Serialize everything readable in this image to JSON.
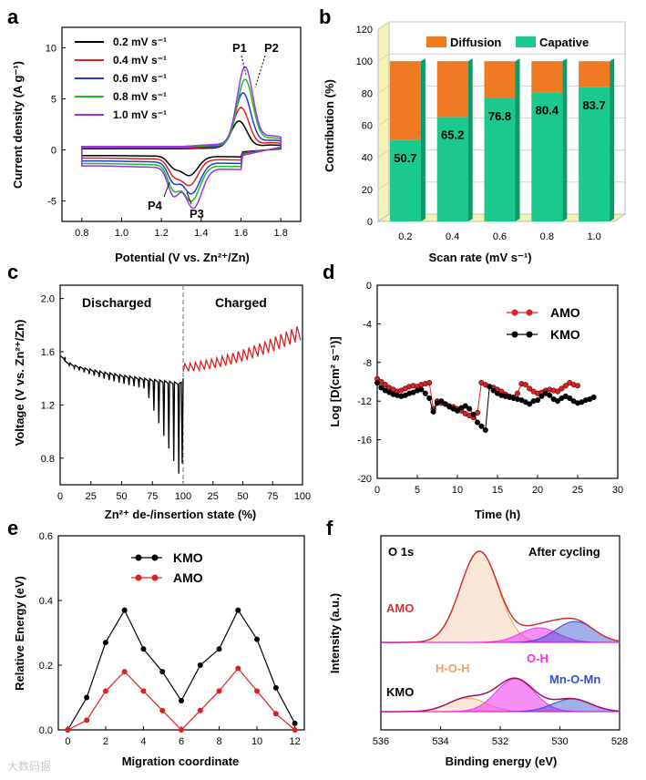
{
  "panel_letters": [
    "a",
    "b",
    "c",
    "d",
    "e",
    "f"
  ],
  "watermark": "大数码据",
  "chart_data": [
    {
      "panel": "a",
      "type": "line",
      "title": "",
      "xlabel": "Potential (V vs. Zn²⁺/Zn)",
      "ylabel": "Current density (A g⁻¹)",
      "xlim": [
        0.7,
        1.9
      ],
      "ylim": [
        -7,
        12
      ],
      "xticks": [
        "0.8",
        "1.0",
        "1.2",
        "1.4",
        "1.6",
        "1.8"
      ],
      "yticks": [
        "-5",
        "0",
        "5",
        "10"
      ],
      "legend": {
        "position": "top-left",
        "entries": [
          "0.2 mV s⁻¹",
          "0.4 mV s⁻¹",
          "0.6 mV s⁻¹",
          "0.8 mV s⁻¹",
          "1.0 mV s⁻¹"
        ]
      },
      "colors": [
        "#000000",
        "#e02020",
        "#1f3bd6",
        "#1fbf1f",
        "#9a32e6"
      ],
      "annotations": [
        "P1",
        "P2",
        "P3",
        "P4"
      ],
      "series": [
        {
          "name": "0.2 mV s⁻¹",
          "ox_peak": [
            1.59,
            2.9
          ],
          "red_peak": [
            1.34,
            -2.2
          ],
          "peak": 2.6
        },
        {
          "name": "0.4 mV s⁻¹",
          "ox_peak": [
            1.6,
            4.1
          ],
          "red_peak": [
            1.34,
            -3.0
          ],
          "peak": 3.8
        },
        {
          "name": "0.6 mV s⁻¹",
          "ox_peak": [
            1.61,
            5.4
          ],
          "red_peak": [
            1.35,
            -3.6
          ],
          "peak": 5.1
        },
        {
          "name": "0.8 mV s⁻¹",
          "ox_peak": [
            1.62,
            6.6
          ],
          "red_peak": [
            1.35,
            -4.1
          ],
          "peak": 6.3
        },
        {
          "name": "1.0 mV s⁻¹",
          "ox_peak": [
            1.62,
            7.7
          ],
          "red_peak": [
            1.36,
            -4.6
          ],
          "peak": 7.4
        }
      ]
    },
    {
      "panel": "b",
      "type": "bar",
      "xlabel": "Scan rate (mV s⁻¹)",
      "ylabel": "Contribution (%)",
      "ylim": [
        0,
        120
      ],
      "yticks": [
        "0",
        "20",
        "40",
        "60",
        "80",
        "100",
        "120"
      ],
      "categories": [
        "0.2",
        "0.4",
        "0.6",
        "0.8",
        "1.0"
      ],
      "legend": {
        "position": "top",
        "entries": [
          "Diffusion",
          "Capative"
        ]
      },
      "colors": {
        "diffusion": "#f07a22",
        "capative": "#1bc98c",
        "wall": "#f5f3b3"
      },
      "series": [
        {
          "name": "Capative",
          "values": [
            50.7,
            65.2,
            76.8,
            80.4,
            83.7
          ]
        },
        {
          "name": "Diffusion",
          "values": [
            49.3,
            34.8,
            23.2,
            19.6,
            16.3
          ]
        }
      ],
      "data_labels": [
        "50.7",
        "65.2",
        "76.8",
        "80.4",
        "83.7"
      ]
    },
    {
      "panel": "c",
      "type": "line",
      "xlabel": "Zn²⁺ de-/insertion state (%)",
      "ylabel": "Voltage (V vs. Zn²⁺/Zn)",
      "xlim": [
        0,
        100
      ],
      "ylim": [
        0.6,
        2.1
      ],
      "xticks": [
        "0",
        "25",
        "50",
        "75",
        "100",
        "25",
        "50",
        "75",
        "100"
      ],
      "yticks": [
        "0.8",
        "1.2",
        "1.6",
        "2.0"
      ],
      "annotations": [
        "Discharged",
        "Charged"
      ],
      "colors": [
        "#000000",
        "#e02020",
        "#888888"
      ],
      "series": [
        {
          "name": "Discharged",
          "start": 1.57,
          "end": 1.37,
          "min_spike": 0.76
        },
        {
          "name": "Charged",
          "start": 1.45,
          "end": 1.78
        }
      ]
    },
    {
      "panel": "d",
      "type": "scatter",
      "xlabel": "Time (h)",
      "ylabel": "Log [D(cm² s⁻¹)]",
      "xlim": [
        0,
        30
      ],
      "ylim": [
        -20,
        0
      ],
      "xticks": [
        "0",
        "5",
        "10",
        "15",
        "20",
        "25",
        "30"
      ],
      "yticks": [
        "0",
        "-4",
        "-8",
        "-12",
        "-16",
        "-20"
      ],
      "legend": {
        "position": "top-right",
        "entries": [
          "AMO",
          "KMO"
        ]
      },
      "colors": [
        "#e02020",
        "#000000"
      ],
      "series": [
        {
          "name": "AMO",
          "x": [
            0,
            0.5,
            1,
            1.5,
            2,
            2.5,
            3,
            3.5,
            4,
            4.5,
            5,
            5.5,
            6,
            6.5,
            7,
            7.5,
            8,
            8.5,
            9,
            9.5,
            10,
            10.5,
            11,
            11.5,
            12,
            12.5,
            13,
            13.5,
            14,
            14.5,
            15,
            15.5,
            16,
            16.5,
            17,
            17.5,
            18,
            18.5,
            19,
            19.5,
            20,
            20.5,
            21,
            21.5,
            22,
            22.5,
            23,
            23.5,
            24,
            24.5,
            25
          ],
          "y": [
            -9.7,
            -10.0,
            -10.3,
            -10.6,
            -10.8,
            -11.0,
            -10.9,
            -10.7,
            -10.5,
            -10.4,
            -10.5,
            -10.3,
            -10.2,
            -10.1,
            -12.8,
            -12.0,
            -12.2,
            -12.3,
            -12.5,
            -12.6,
            -12.8,
            -13.0,
            -13.3,
            -13.5,
            -13.7,
            -13.2,
            -10.1,
            -10.3,
            -10.5,
            -10.6,
            -10.8,
            -11.0,
            -11.3,
            -11.5,
            -11.6,
            -11.2,
            -10.2,
            -10.3,
            -10.7,
            -11.0,
            -11.2,
            -11.1,
            -10.9,
            -10.8,
            -10.9,
            -11.0,
            -10.7,
            -10.4,
            -10.1,
            -10.3,
            -10.4
          ]
        },
        {
          "name": "KMO",
          "x": [
            0,
            0.5,
            1,
            1.5,
            2,
            2.5,
            3,
            3.5,
            4,
            4.5,
            5,
            5.5,
            6,
            6.5,
            7,
            7.5,
            8,
            8.5,
            9,
            9.5,
            10,
            10.5,
            11,
            11.5,
            12,
            12.5,
            13,
            13.5,
            14,
            14.5,
            15,
            15.5,
            16,
            16.5,
            17,
            17.5,
            18,
            18.5,
            19,
            19.5,
            20,
            20.5,
            21,
            21.5,
            22,
            22.5,
            23,
            23.5,
            24,
            24.5,
            25,
            25.5,
            26,
            26.5,
            27
          ],
          "y": [
            -10.1,
            -10.6,
            -10.9,
            -11.1,
            -11.3,
            -11.4,
            -11.5,
            -11.4,
            -11.2,
            -11.1,
            -10.9,
            -10.8,
            -11.2,
            -11.7,
            -13.1,
            -12.2,
            -12.0,
            -12.3,
            -12.6,
            -12.8,
            -13.0,
            -12.7,
            -12.5,
            -12.8,
            -13.4,
            -14.2,
            -14.6,
            -15.0,
            -10.5,
            -10.9,
            -11.2,
            -11.4,
            -11.5,
            -11.6,
            -11.7,
            -11.8,
            -11.9,
            -12.1,
            -12.3,
            -12.0,
            -11.9,
            -11.5,
            -11.2,
            -11.4,
            -11.8,
            -12.0,
            -11.7,
            -11.5,
            -11.7,
            -12.0,
            -12.2,
            -12.1,
            -11.9,
            -11.8,
            -11.6
          ]
        }
      ]
    },
    {
      "panel": "e",
      "type": "line",
      "xlabel": "Migration coordinate",
      "ylabel": "Relative Energy (eV)",
      "xlim": [
        -0.5,
        12.5
      ],
      "ylim": [
        0,
        0.6
      ],
      "xticks": [
        "0",
        "2",
        "4",
        "6",
        "8",
        "10",
        "12"
      ],
      "yticks": [
        "0.0",
        "0.2",
        "0.4",
        "0.6"
      ],
      "legend": {
        "position": "top-left",
        "entries": [
          "KMO",
          "AMO"
        ]
      },
      "colors": [
        "#000000",
        "#e02020"
      ],
      "series": [
        {
          "name": "KMO",
          "x": [
            0,
            1,
            2,
            3,
            4,
            5,
            6,
            7,
            8,
            9,
            10,
            11,
            12
          ],
          "values": [
            0.0,
            0.1,
            0.27,
            0.37,
            0.25,
            0.18,
            0.09,
            0.2,
            0.25,
            0.37,
            0.28,
            0.13,
            0.02
          ]
        },
        {
          "name": "AMO",
          "x": [
            0,
            1,
            2,
            3,
            4,
            5,
            6,
            7,
            8,
            9,
            10,
            11,
            12
          ],
          "values": [
            0.0,
            0.03,
            0.12,
            0.18,
            0.12,
            0.06,
            0.0,
            0.06,
            0.12,
            0.19,
            0.12,
            0.05,
            0.0
          ]
        }
      ]
    },
    {
      "panel": "f",
      "type": "area",
      "xlabel": "Binding energy (eV)",
      "ylabel": "Intensity (a.u.)",
      "xlim": [
        536,
        528
      ],
      "xticks": [
        "536",
        "534",
        "532",
        "530",
        "528"
      ],
      "annotations": [
        "O 1s",
        "After cycling",
        "AMO",
        "KMO",
        "H-O-H",
        "O-H",
        "Mn-O-Mn"
      ],
      "colors": {
        "hoh": "#f0a060",
        "oh": "#ee33ee",
        "mnomn": "#3050d0",
        "envelope_amo": "#d03030",
        "envelope_kmo": "#a01060"
      },
      "series": [
        {
          "name": "AMO H-O-H",
          "center": 532.7,
          "height": 1.0
        },
        {
          "name": "AMO O-H",
          "center": 530.7,
          "height": 0.16
        },
        {
          "name": "AMO Mn-O-Mn",
          "center": 529.5,
          "height": 0.23
        },
        {
          "name": "KMO H-O-H",
          "center": 533.1,
          "height": 0.15
        },
        {
          "name": "KMO O-H",
          "center": 531.5,
          "height": 0.36
        },
        {
          "name": "KMO Mn-O-Mn",
          "center": 529.6,
          "height": 0.14
        }
      ]
    }
  ]
}
